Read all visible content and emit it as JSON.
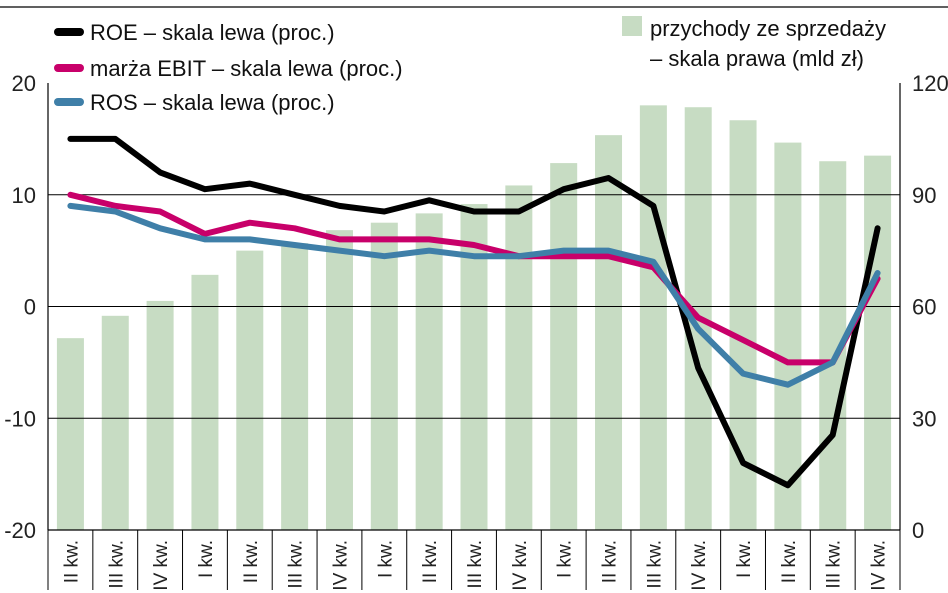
{
  "chart_data": {
    "type": "bar+line",
    "legend": {
      "roe": "ROE – skala lewa (proc.)",
      "ebit": "marża EBIT – skala lewa (proc.)",
      "ros": "ROS – skala lewa (proc.)",
      "revenue_line1": "przychody ze sprzedaży",
      "revenue_line2": "– skala prawa (mld zł)"
    },
    "categories": [
      "II kw.",
      "III kw.",
      "IV kw.",
      "I kw.",
      "II kw.",
      "III kw.",
      "IV kw.",
      "I kw.",
      "II kw.",
      "III kw.",
      "IV kw.",
      "I kw.",
      "II kw.",
      "III kw.",
      "IV kw.",
      "I kw.",
      "II kw.",
      "III kw.",
      "IV kw."
    ],
    "left_axis": {
      "min": -20,
      "max": 20,
      "ticks": [
        20,
        10,
        0,
        -10,
        -20
      ]
    },
    "right_axis": {
      "min": 0,
      "max": 120,
      "ticks": [
        120,
        90,
        60,
        30,
        0
      ]
    },
    "bars": {
      "name": "przychody ze sprzedaży",
      "axis": "right",
      "values": [
        51.5,
        57.5,
        61.5,
        68.5,
        75,
        77,
        80.5,
        82.5,
        85,
        87.5,
        92.5,
        98.5,
        106,
        114,
        113.5,
        110,
        104,
        99,
        100.5
      ]
    },
    "series": [
      {
        "key": "roe",
        "name": "ROE",
        "axis": "left",
        "color": "#000000",
        "values": [
          15,
          15,
          12,
          10.5,
          11,
          10,
          9,
          8.5,
          9.5,
          8.5,
          8.5,
          10.5,
          11.5,
          9,
          -5.5,
          -14,
          -16,
          -11.5,
          7
        ]
      },
      {
        "key": "ebit",
        "name": "marża EBIT",
        "axis": "left",
        "color": "#c8006a",
        "values": [
          10,
          9,
          8.5,
          6.5,
          7.5,
          7,
          6,
          6,
          6,
          5.5,
          4.5,
          4.5,
          4.5,
          3.5,
          -1,
          -3,
          -5,
          -5,
          2.5
        ]
      },
      {
        "key": "ros",
        "name": "ROS",
        "axis": "left",
        "color": "#3f7fa8",
        "values": [
          9,
          8.5,
          7,
          6,
          6,
          5.5,
          5,
          4.5,
          5,
          4.5,
          4.5,
          5,
          5,
          4,
          -2,
          -6,
          -7,
          -5,
          3
        ]
      }
    ],
    "colors": {
      "bars": "#c7dcc3",
      "grid": "#000000",
      "roe": "#000000",
      "ebit": "#c8006a",
      "ros": "#3f7fa8"
    },
    "grid": true
  }
}
